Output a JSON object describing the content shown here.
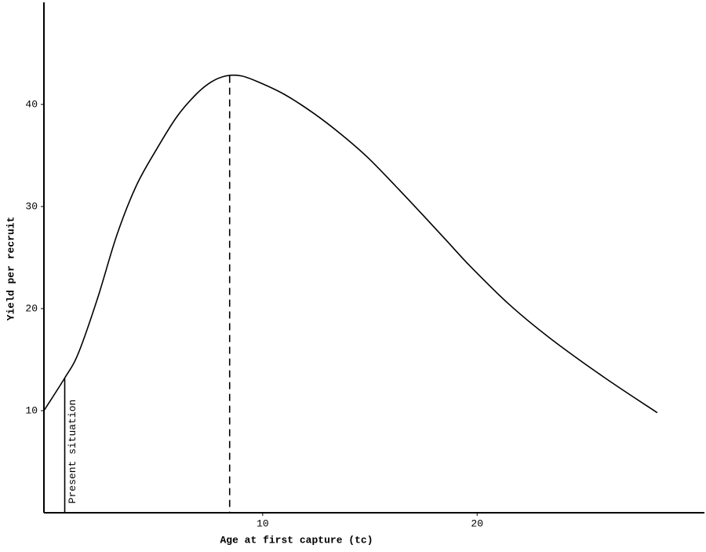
{
  "chart_data": {
    "type": "line",
    "x_label": "Age at first capture (tc)",
    "y_label": "Yield per recruit",
    "x": [
      -0.2,
      0.77,
      1.4,
      2.3,
      3.2,
      4.1,
      5.05,
      6.0,
      6.9,
      7.6,
      8.3,
      9.0,
      9.8,
      11.0,
      12.4,
      13.7,
      14.9,
      16.2,
      17.5,
      18.6,
      19.7,
      21.5,
      23.4,
      25.9,
      28.4
    ],
    "series": [
      {
        "name": "Yield per recruit",
        "color": "#000000",
        "values": [
          10,
          13.2,
          15.6,
          21.0,
          27.2,
          32.0,
          35.6,
          38.8,
          41.0,
          42.2,
          42.8,
          42.8,
          42.2,
          41.0,
          39.1,
          37.0,
          34.8,
          32.0,
          29.1,
          26.6,
          24.1,
          20.4,
          17.1,
          13.3,
          9.8
        ]
      }
    ],
    "markers": [
      {
        "label": "Present situation",
        "x": 0.77,
        "y": 13.2,
        "style": "solid"
      },
      {
        "x": 8.46,
        "y": 42.8,
        "style": "dashed"
      }
    ],
    "xlim": [
      -0.2,
      30.6
    ],
    "ylim": [
      0,
      50
    ],
    "xticks": [
      10,
      20
    ],
    "yticks": [
      10,
      20,
      30,
      40
    ]
  }
}
